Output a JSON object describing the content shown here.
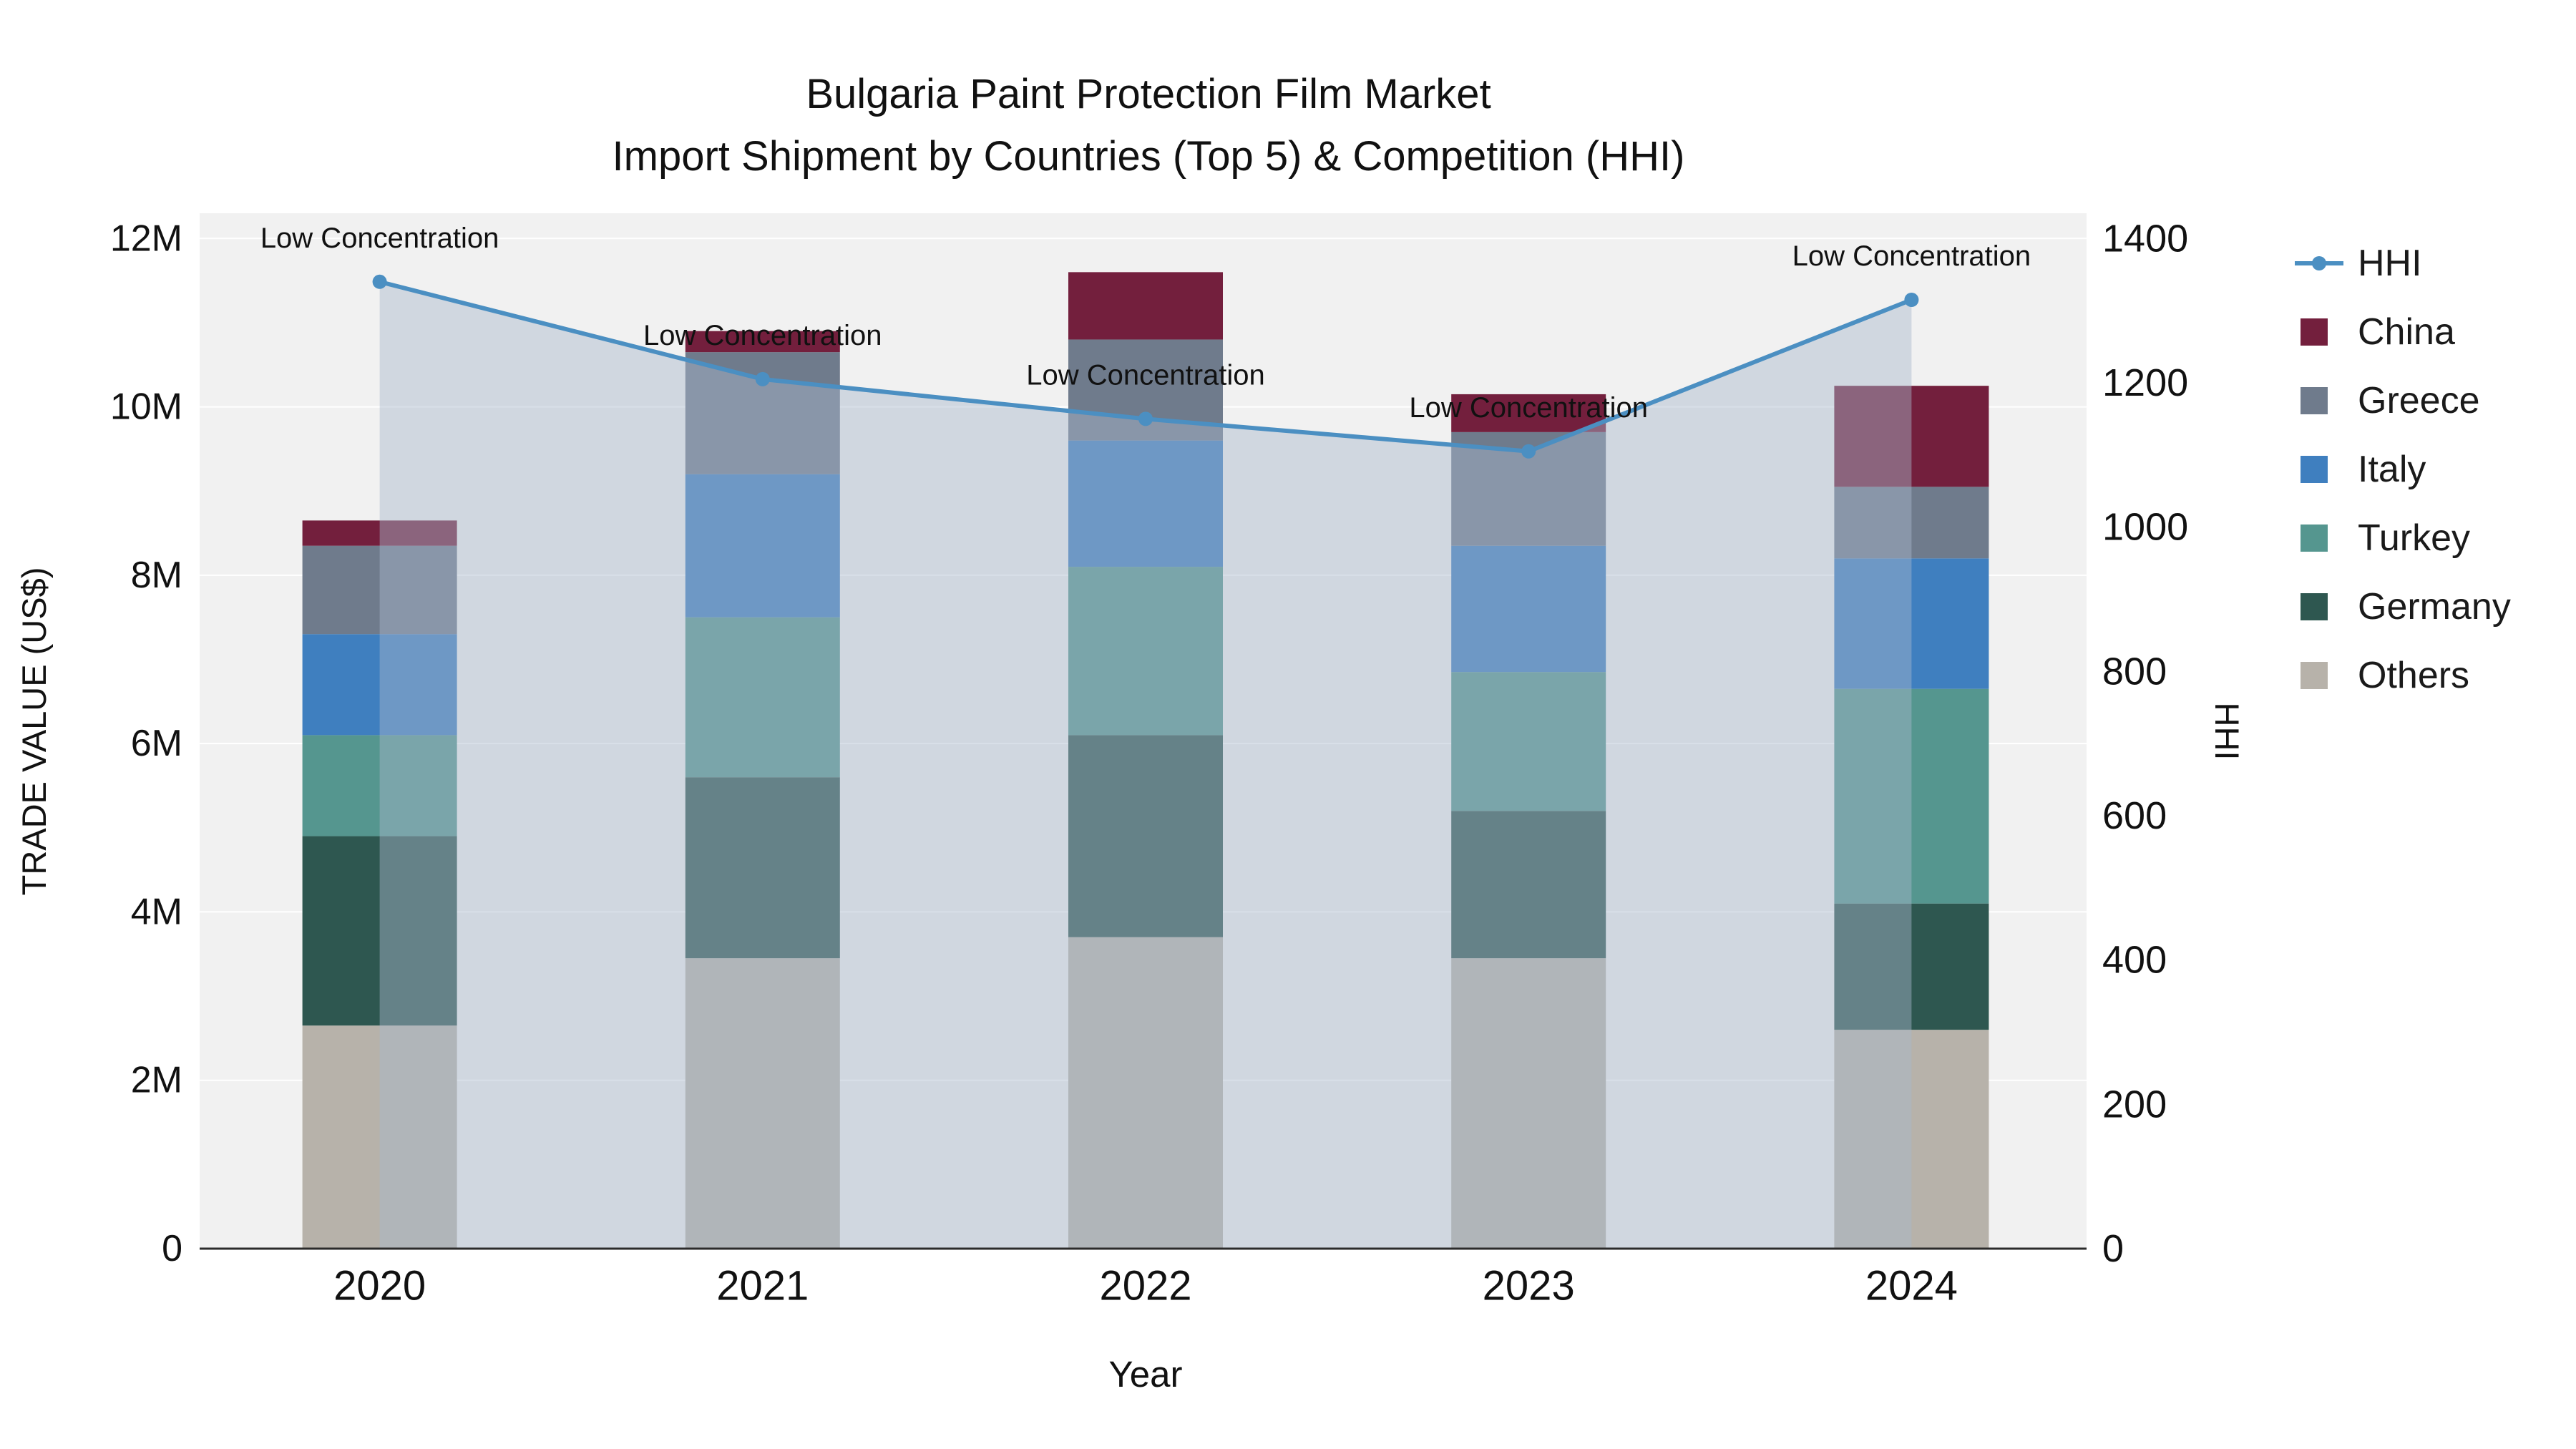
{
  "title": {
    "line1": "Bulgaria Paint Protection Film Market",
    "line2": "Import Shipment by Countries (Top 5) & Competition (HHI)"
  },
  "axes": {
    "y_left": {
      "title": "TRADE VALUE (US$)",
      "ticks": [
        "0",
        "2M",
        "4M",
        "6M",
        "8M",
        "10M",
        "12M"
      ],
      "tick_step_musd": 2,
      "range_musd": [
        0,
        12.3
      ]
    },
    "y_right": {
      "title": "HHI",
      "ticks": [
        "0",
        "200",
        "400",
        "600",
        "800",
        "1000",
        "1200",
        "1400"
      ],
      "tick_step": 200,
      "range": [
        0,
        1435
      ]
    },
    "x": {
      "title": "Year",
      "categories": [
        "2020",
        "2021",
        "2022",
        "2023",
        "2024"
      ]
    }
  },
  "legend": {
    "items": [
      {
        "label": "HHI",
        "type": "line",
        "color": "#4b8fc2"
      },
      {
        "label": "China",
        "type": "square",
        "color": "#731f3d"
      },
      {
        "label": "Greece",
        "type": "square",
        "color": "#6f7b8c"
      },
      {
        "label": "Italy",
        "type": "square",
        "color": "#3f7fbf"
      },
      {
        "label": "Turkey",
        "type": "square",
        "color": "#55968f"
      },
      {
        "label": "Germany",
        "type": "square",
        "color": "#2e5750"
      },
      {
        "label": "Others",
        "type": "square",
        "color": "#b7b2aa"
      }
    ]
  },
  "chart_data": {
    "type": "combo",
    "subtypes": [
      "stacked-bar",
      "line-area"
    ],
    "title": "Bulgaria Paint Protection Film Market Import Shipment by Countries (Top 5) & Competition (HHI)",
    "xlabel": "Year",
    "ylabel_left": "TRADE VALUE (US$)",
    "ylabel_right": "HHI",
    "categories": [
      "2020",
      "2021",
      "2022",
      "2023",
      "2024"
    ],
    "stack_order_bottom_to_top": [
      "Others",
      "Germany",
      "Turkey",
      "Italy",
      "Greece",
      "China"
    ],
    "bar_series": [
      {
        "name": "Others",
        "color": "#b7b2aa",
        "values_musd": [
          2.65,
          3.45,
          3.7,
          3.45,
          2.6
        ]
      },
      {
        "name": "Germany",
        "color": "#2e5750",
        "values_musd": [
          2.25,
          2.15,
          2.4,
          1.75,
          1.5
        ]
      },
      {
        "name": "Turkey",
        "color": "#55968f",
        "values_musd": [
          1.2,
          1.9,
          2.0,
          1.65,
          2.55
        ]
      },
      {
        "name": "Italy",
        "color": "#3f7fbf",
        "values_musd": [
          1.2,
          1.7,
          1.5,
          1.5,
          1.55
        ]
      },
      {
        "name": "Greece",
        "color": "#6f7b8c",
        "values_musd": [
          1.05,
          1.45,
          1.2,
          1.35,
          0.85
        ]
      },
      {
        "name": "China",
        "color": "#731f3d",
        "values_musd": [
          0.3,
          0.25,
          0.8,
          0.45,
          1.2
        ]
      }
    ],
    "bar_totals_musd": [
      8.65,
      10.9,
      11.6,
      10.15,
      10.25
    ],
    "line_series": {
      "name": "HHI",
      "color": "#4b8fc2",
      "fill": "rgba(168,184,205,0.45)",
      "values": [
        1340,
        1205,
        1150,
        1105,
        1315
      ]
    },
    "annotations": [
      {
        "x": "2020",
        "text": "Low Concentration"
      },
      {
        "x": "2021",
        "text": "Low Concentration"
      },
      {
        "x": "2022",
        "text": "Low Concentration"
      },
      {
        "x": "2023",
        "text": "Low Concentration"
      },
      {
        "x": "2024",
        "text": "Low Concentration"
      }
    ],
    "ylim_left_musd": [
      0,
      12.3
    ],
    "ylim_right": [
      0,
      1435
    ],
    "grid": true,
    "legend_position": "right"
  }
}
